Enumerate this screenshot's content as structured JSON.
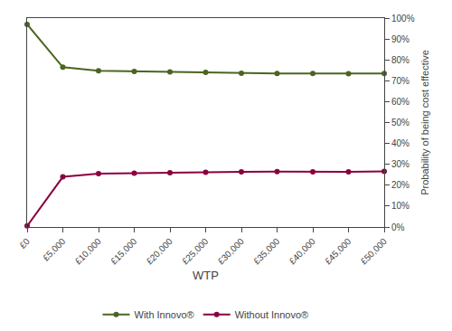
{
  "chart_data": {
    "type": "line",
    "x": [
      0,
      5000,
      10000,
      15000,
      20000,
      25000,
      30000,
      35000,
      40000,
      45000,
      50000
    ],
    "series": [
      {
        "name": "With Innovo®",
        "color": "#4a6520",
        "values": [
          0.97,
          0.765,
          0.748,
          0.745,
          0.742,
          0.74,
          0.736,
          0.735,
          0.735,
          0.734,
          0.735
        ]
      },
      {
        "name": "Without Innovo®",
        "color": "#8b0040",
        "values": [
          0.005,
          0.24,
          0.255,
          0.258,
          0.26,
          0.262,
          0.264,
          0.265,
          0.264,
          0.264,
          0.266
        ]
      }
    ],
    "xlabel": "WTP",
    "ylabel": "Probability of being cost effective",
    "xlim": [
      0,
      50000
    ],
    "xticks": [
      {
        "value": 0,
        "label": "£0"
      },
      {
        "value": 5000,
        "label": "£5,000"
      },
      {
        "value": 10000,
        "label": "£10,000"
      },
      {
        "value": 15000,
        "label": "£15,000"
      },
      {
        "value": 20000,
        "label": "£20,000"
      },
      {
        "value": 25000,
        "label": "£25,000"
      },
      {
        "value": 30000,
        "label": "£30,000"
      },
      {
        "value": 35000,
        "label": "£35,000"
      },
      {
        "value": 40000,
        "label": "£40,000"
      },
      {
        "value": 45000,
        "label": "£45,000"
      },
      {
        "value": 50000,
        "label": "£50,000"
      }
    ],
    "ylim": [
      0,
      1.0
    ],
    "yticks": [
      {
        "value": 0.0,
        "label": "0%"
      },
      {
        "value": 0.1,
        "label": "10%"
      },
      {
        "value": 0.2,
        "label": "20%"
      },
      {
        "value": 0.3,
        "label": "30%"
      },
      {
        "value": 0.4,
        "label": "40%"
      },
      {
        "value": 0.5,
        "label": "50%"
      },
      {
        "value": 0.6,
        "label": "60%"
      },
      {
        "value": 0.7,
        "label": "70%"
      },
      {
        "value": 0.8,
        "label": "80%"
      },
      {
        "value": 0.9,
        "label": "90%"
      },
      {
        "value": 1.0,
        "label": "100%"
      }
    ],
    "grid": false,
    "legend": "bottom",
    "marker": "circle",
    "line_style": "solid"
  }
}
